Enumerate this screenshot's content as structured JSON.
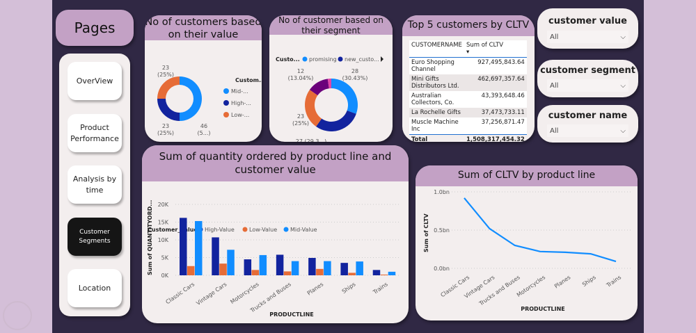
{
  "nav": {
    "title": "Pages",
    "items": [
      {
        "label": "OverView"
      },
      {
        "label": "Product Performance"
      },
      {
        "label": "Analysis by time"
      },
      {
        "label": "Customer Segments",
        "active": true
      },
      {
        "label": "Location"
      }
    ]
  },
  "value_donut": {
    "title": "No of customers based on their value",
    "legend_title": "Custom...",
    "slices": [
      {
        "name": "Mid-...",
        "value": 46,
        "label1": "46",
        "label2": "(5...)",
        "color": "#118DFF"
      },
      {
        "name": "High-...",
        "value": 23,
        "label1": "23",
        "label2": "(25%)",
        "color": "#12239E"
      },
      {
        "name": "Low-...",
        "value": 23,
        "label1": "23",
        "label2": "(25%)",
        "color": "#E66C37"
      }
    ]
  },
  "segment_donut": {
    "title": "No of customer based on their segment",
    "legend_title": "Custo...",
    "legend": [
      "promising",
      "new_custo..."
    ],
    "slices": [
      {
        "value": 28,
        "label": "28",
        "label2": "(30.43%)",
        "color": "#118DFF"
      },
      {
        "value": 27,
        "label": "27 (29.3...)",
        "label2": "",
        "color": "#12239E"
      },
      {
        "value": 23,
        "label": "23",
        "label2": "(25%)",
        "color": "#E66C37"
      },
      {
        "value": 12,
        "label": "12",
        "label2": "(13.04%)",
        "color": "#6B007B"
      },
      {
        "value": 2,
        "label": "",
        "label2": "",
        "color": "#E044A7"
      }
    ]
  },
  "top5": {
    "title": "Top 5 customers by CLTV",
    "col1": "CUSTOMERNAME",
    "col2": "Sum of CLTV",
    "rows": [
      [
        "Euro Shopping Channel",
        "927,495,843.64"
      ],
      [
        "Mini Gifts Distributors Ltd.",
        "462,697,357.64"
      ],
      [
        "Australian Collectors, Co.",
        "43,393,648.46"
      ],
      [
        "La Rochelle Gifts",
        "37,473,733.11"
      ],
      [
        "Muscle Machine Inc",
        "37,256,871.47"
      ]
    ],
    "total_label": "Total",
    "total": "1,508,317,454.32"
  },
  "slicers": [
    {
      "title": "customer value",
      "value": "All"
    },
    {
      "title": "customer segment",
      "value": "All"
    },
    {
      "title": "customer name",
      "value": "All"
    }
  ],
  "chart_data": [
    {
      "type": "bar",
      "title": "Sum of quantity ordered by product line and customer value",
      "legend_title": "Customer_value",
      "xlabel": "PRODUCTLINE",
      "ylabel": "Sum of QUANTITYORD...",
      "ylim": [
        0,
        20000
      ],
      "yticks": [
        "0K",
        "5K",
        "10K",
        "15K",
        "20K"
      ],
      "categories": [
        "Classic Cars",
        "Vintage Cars",
        "Motorcycles",
        "Trucks and Buses",
        "Planes",
        "Ships",
        "Trains"
      ],
      "series": [
        {
          "name": "High-Value",
          "color": "#12239E",
          "values": [
            16200,
            10700,
            4500,
            5800,
            4900,
            3500,
            1500
          ]
        },
        {
          "name": "Low-Value",
          "color": "#E66C37",
          "values": [
            2600,
            3300,
            1500,
            1100,
            1800,
            700,
            200
          ]
        },
        {
          "name": "Mid-Value",
          "color": "#118DFF",
          "values": [
            15300,
            7200,
            5700,
            4000,
            4000,
            3900,
            1000
          ]
        }
      ]
    },
    {
      "type": "line",
      "title": "Sum of CLTV by product line",
      "xlabel": "PRODUCTLINE",
      "ylabel": "Sum of CLTV",
      "ylim": [
        0,
        1.0
      ],
      "yticks": [
        "0.0bn",
        "0.5bn",
        "1.0bn"
      ],
      "categories": [
        "Classic Cars",
        "Vintage Cars",
        "Trucks and Buses",
        "Motorcycles",
        "Planes",
        "Ships",
        "Trains"
      ],
      "values": [
        0.92,
        0.52,
        0.3,
        0.22,
        0.21,
        0.19,
        0.09
      ],
      "color": "#118DFF"
    }
  ]
}
